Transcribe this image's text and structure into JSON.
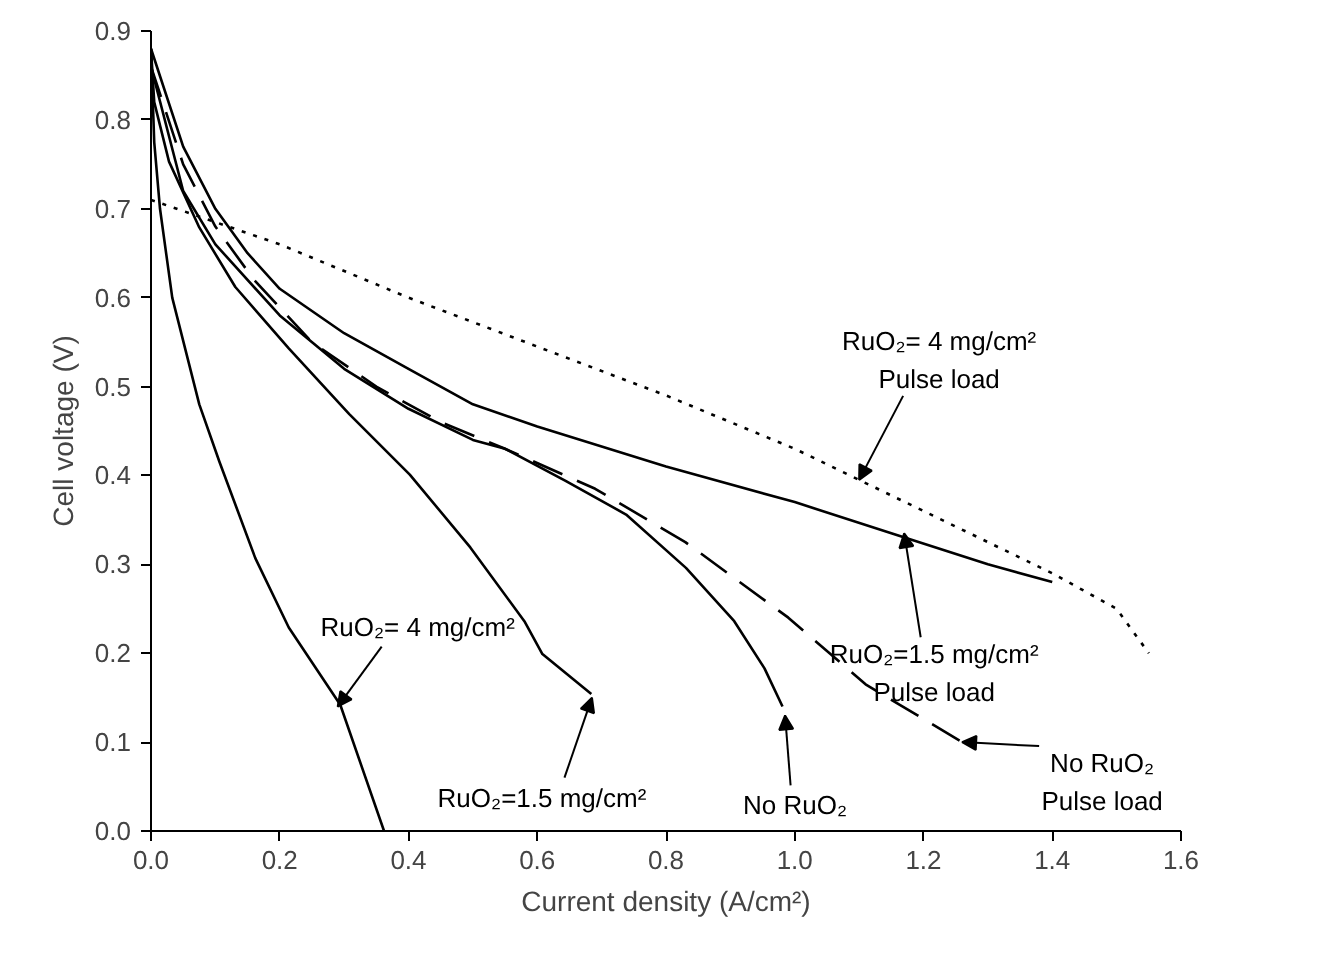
{
  "chart_data": {
    "type": "line",
    "xlabel": "Current density (A/cm²)",
    "ylabel": "Cell voltage (V)",
    "xlim": [
      0,
      1.6
    ],
    "ylim": [
      0,
      0.9
    ],
    "xticks": [
      {
        "value": 0,
        "label": "0.0"
      },
      0.2,
      0.4,
      0.6,
      0.8,
      {
        "value": 1,
        "label": "1.0"
      },
      1.2,
      1.4,
      1.6
    ],
    "yticks": [
      {
        "value": 0,
        "label": "0.0"
      },
      0.1,
      0.2,
      0.3,
      0.4,
      0.5,
      0.6,
      0.7,
      0.8,
      0.9
    ],
    "series": [
      {
        "color": "#000000",
        "line_style": "solid",
        "x": [
          0,
          0.005,
          0.014,
          0.033,
          0.075,
          0.106,
          0.162,
          0.214,
          0.294,
          0.362
        ],
        "values": [
          0.88,
          0.775,
          0.7,
          0.6,
          0.48,
          0.416,
          0.307,
          0.229,
          0.142,
          0
        ]
      },
      {
        "color": "#000000",
        "line_style": "solid",
        "x": [
          0,
          0.005,
          0.028,
          0.075,
          0.131,
          0.214,
          0.308,
          0.402,
          0.496,
          0.58,
          0.608,
          0.684
        ],
        "values": [
          0.88,
          0.82,
          0.753,
          0.679,
          0.612,
          0.543,
          0.469,
          0.401,
          0.319,
          0.236,
          0.199,
          0.154
        ]
      },
      {
        "color": "#000000",
        "line_style": "solid",
        "x": [
          0,
          0.05,
          0.1,
          0.2,
          0.3,
          0.4,
          0.5,
          0.55,
          0.644,
          0.738,
          0.831,
          0.906,
          0.953,
          0.981
        ],
        "values": [
          0.86,
          0.72,
          0.66,
          0.58,
          0.52,
          0.475,
          0.44,
          0.43,
          0.394,
          0.356,
          0.296,
          0.236,
          0.183,
          0.14
        ]
      },
      {
        "color": "#000000",
        "line_style": "dashed",
        "x": [
          0,
          0.05,
          0.1,
          0.16,
          0.25,
          0.35,
          0.45,
          0.55,
          0.69,
          0.83,
          0.99,
          1.11,
          1.26
        ],
        "values": [
          0.86,
          0.75,
          0.68,
          0.62,
          0.55,
          0.5,
          0.46,
          0.43,
          0.385,
          0.325,
          0.24,
          0.165,
          0.1
        ]
      },
      {
        "color": "#000000",
        "line_style": "solid",
        "x": [
          0,
          0.05,
          0.1,
          0.15,
          0.2,
          0.3,
          0.4,
          0.5,
          0.6,
          0.8,
          1.0,
          1.15,
          1.3,
          1.4
        ],
        "values": [
          0.88,
          0.77,
          0.7,
          0.65,
          0.61,
          0.56,
          0.52,
          0.48,
          0.455,
          0.41,
          0.37,
          0.335,
          0.3,
          0.28
        ]
      },
      {
        "color": "#000000",
        "line_style": "dotted",
        "x": [
          0,
          0.2,
          0.4,
          0.6,
          0.8,
          1.0,
          1.2,
          1.4,
          1.5,
          1.55
        ],
        "values": [
          0.71,
          0.66,
          0.6,
          0.545,
          0.49,
          0.43,
          0.36,
          0.29,
          0.25,
          0.2
        ]
      }
    ],
    "annotations": [
      {
        "text": "RuO₂= 4 mg/cm²",
        "x": 0.29,
        "y": 0.14
      },
      {
        "text": "RuO₂=1.5 mg/cm²",
        "x": 0.685,
        "y": 0.15
      },
      {
        "text": "No RuO₂",
        "x": 0.985,
        "y": 0.13
      },
      {
        "text": "No RuO₂\nPulse load",
        "x": 1.26,
        "y": 0.1
      },
      {
        "text": "RuO₂=1.5 mg/cm²\nPulse load",
        "x": 1.17,
        "y": 0.335
      },
      {
        "text": "RuO₂= 4 mg/cm²\nPulse load",
        "x": 1.1,
        "y": 0.395
      }
    ]
  }
}
